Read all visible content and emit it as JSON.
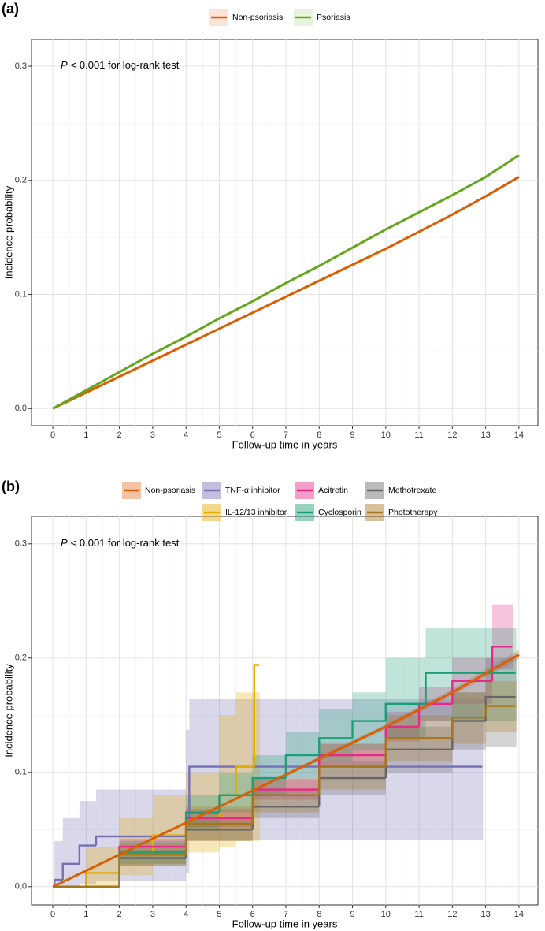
{
  "chart_data": [
    {
      "type": "line",
      "title": "(a)",
      "annotation_italic": "P",
      "annotation": "< 0.001 for log-rank test",
      "x_label": "Follow-up time in years",
      "y_label": "Incidence probability",
      "x": [
        0,
        1,
        2,
        3,
        4,
        5,
        6,
        7,
        8,
        9,
        10,
        11,
        12,
        13,
        14
      ],
      "series": [
        {
          "name": "Non-psoriasis",
          "color": "#d95f02",
          "band_color": "#f4c4a4",
          "step": false,
          "values": [
            0,
            0.014,
            0.028,
            0.042,
            0.056,
            0.07,
            0.084,
            0.098,
            0.112,
            0.126,
            0.14,
            0.155,
            0.17,
            0.186,
            0.203
          ]
        },
        {
          "name": "Psoriasis",
          "color": "#66a61e",
          "band_color": "#c9e4b0",
          "step": false,
          "values": [
            0,
            0.016,
            0.032,
            0.048,
            0.063,
            0.079,
            0.094,
            0.11,
            0.125,
            0.141,
            0.157,
            0.172,
            0.187,
            0.203,
            0.222
          ]
        }
      ],
      "xlim": [
        -0.64,
        14.57
      ],
      "ylim": [
        -0.015,
        0.3235
      ],
      "xticks": [
        0,
        1,
        2,
        3,
        4,
        5,
        6,
        7,
        8,
        9,
        10,
        11,
        12,
        13,
        14
      ],
      "yticks": [
        {
          "value": 0,
          "label": "0.0"
        },
        0.1,
        0.2,
        0.3
      ],
      "grid": true
    },
    {
      "type": "step",
      "title": "(b)",
      "annotation_italic": "P",
      "annotation": "< 0.001 for log-rank test",
      "x_label": "Follow-up time in years",
      "y_label": "Incidence probability",
      "series": [
        {
          "name": "Non-psoriasis",
          "color": "#d95f02",
          "band_color": "#e7793a",
          "step": false,
          "x": [
            0,
            2,
            4,
            6,
            8,
            10,
            12,
            14
          ],
          "values": [
            0,
            0.028,
            0.056,
            0.084,
            0.112,
            0.14,
            0.17,
            0.203
          ],
          "lower": [
            0,
            0.027,
            0.055,
            0.083,
            0.11,
            0.138,
            0.167,
            0.199
          ],
          "upper": [
            0,
            0.029,
            0.057,
            0.085,
            0.114,
            0.142,
            0.173,
            0.207
          ]
        },
        {
          "name": "TNF-α inhibitor",
          "color": "#7570b3",
          "band_color": "#7570b3",
          "step": true,
          "x": [
            0,
            0.05,
            0.3,
            0.8,
            1.3,
            4.0,
            4.1,
            12.9
          ],
          "values": [
            0,
            0.006,
            0.02,
            0.036,
            0.044,
            0.06,
            0.105,
            0.105
          ],
          "lower": [
            0,
            0,
            0,
            0.002,
            0.005,
            0.012,
            0.041,
            0.041
          ],
          "upper": [
            0,
            0.04,
            0.06,
            0.075,
            0.085,
            0.137,
            0.164,
            0.164
          ]
        },
        {
          "name": "IL-12/13 inhibitor",
          "color": "#e6ab02",
          "band_color": "#e6ab02",
          "step": true,
          "x": [
            0,
            1,
            2,
            3,
            4,
            5,
            5.5,
            6.05,
            6.2
          ],
          "values": [
            0,
            0.012,
            0.03,
            0.045,
            0.06,
            0.08,
            0.105,
            0.194,
            0.194
          ],
          "lower": [
            0,
            0,
            0.01,
            0.02,
            0.03,
            0.035,
            0.04,
            0.04,
            0.04
          ],
          "upper": [
            0,
            0.035,
            0.06,
            0.08,
            0.1,
            0.15,
            0.17,
            0.17,
            0.17
          ]
        },
        {
          "name": "Acitretin",
          "color": "#e7298a",
          "band_color": "#e7298a",
          "step": true,
          "x": [
            0,
            2,
            4,
            6,
            8,
            10,
            11,
            12,
            13.2,
            13.8
          ],
          "values": [
            0,
            0.035,
            0.06,
            0.085,
            0.115,
            0.14,
            0.16,
            0.18,
            0.21,
            0.21
          ],
          "lower": [
            0,
            0.028,
            0.052,
            0.076,
            0.105,
            0.127,
            0.145,
            0.16,
            0.19,
            0.19
          ],
          "upper": [
            0,
            0.042,
            0.068,
            0.094,
            0.125,
            0.153,
            0.175,
            0.2,
            0.247,
            0.247
          ]
        },
        {
          "name": "Cyclosporin",
          "color": "#1b9e77",
          "band_color": "#1b9e77",
          "step": true,
          "x": [
            0,
            2,
            4,
            5,
            6,
            7,
            8,
            9,
            10,
            11.2,
            13.9
          ],
          "values": [
            0,
            0.03,
            0.065,
            0.08,
            0.095,
            0.115,
            0.13,
            0.145,
            0.16,
            0.187,
            0.187
          ],
          "lower": [
            0,
            0.02,
            0.05,
            0.065,
            0.08,
            0.095,
            0.11,
            0.12,
            0.13,
            0.145,
            0.145
          ],
          "upper": [
            0,
            0.04,
            0.08,
            0.1,
            0.115,
            0.135,
            0.155,
            0.17,
            0.2,
            0.226,
            0.226
          ]
        },
        {
          "name": "Methotrexate",
          "color": "#666666",
          "band_color": "#666666",
          "step": true,
          "x": [
            0,
            2,
            4,
            6,
            8,
            10,
            12,
            13,
            13.9
          ],
          "values": [
            0,
            0.025,
            0.05,
            0.07,
            0.095,
            0.12,
            0.145,
            0.166,
            0.166
          ],
          "lower": [
            0,
            0.018,
            0.04,
            0.06,
            0.08,
            0.1,
            0.12,
            0.122,
            0.122
          ],
          "upper": [
            0,
            0.032,
            0.06,
            0.085,
            0.11,
            0.14,
            0.17,
            0.2,
            0.2
          ]
        },
        {
          "name": "Phototherapy",
          "color": "#a6761d",
          "band_color": "#a6761d",
          "step": true,
          "x": [
            0,
            2,
            4,
            6,
            8,
            10,
            12,
            13,
            13.9
          ],
          "values": [
            0,
            0.028,
            0.055,
            0.08,
            0.105,
            0.13,
            0.148,
            0.158,
            0.158
          ],
          "lower": [
            0,
            0.018,
            0.04,
            0.065,
            0.085,
            0.11,
            0.125,
            0.135,
            0.135
          ],
          "upper": [
            0,
            0.038,
            0.07,
            0.095,
            0.125,
            0.15,
            0.17,
            0.18,
            0.18
          ]
        }
      ],
      "xlim": [
        -0.64,
        14.57
      ],
      "ylim": [
        -0.016,
        0.324
      ],
      "xticks": [
        0,
        1,
        2,
        3,
        4,
        5,
        6,
        7,
        8,
        9,
        10,
        11,
        12,
        13,
        14
      ],
      "yticks": [
        {
          "value": 0,
          "label": "0.0"
        },
        0.1,
        0.2,
        0.3
      ],
      "grid": true
    }
  ]
}
